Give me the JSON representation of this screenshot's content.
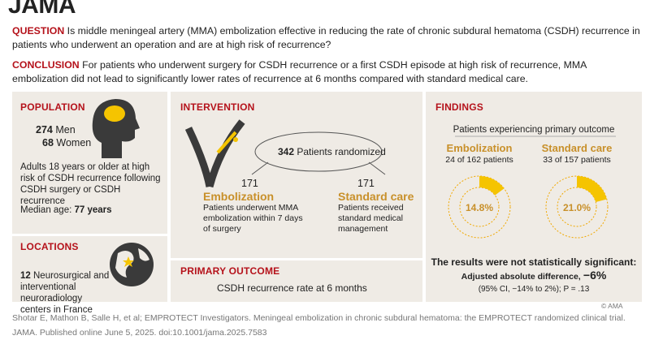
{
  "header": {
    "logo": "JAMA"
  },
  "question": {
    "label": "QUESTION",
    "text": "Is middle meningeal artery (MMA) embolization effective in reducing the rate of chronic subdural hematoma (CSDH) recurrence in patients who underwent an operation and are at high risk of recurrence?"
  },
  "conclusion": {
    "label": "CONCLUSION",
    "text": "For patients who underwent surgery for CSDH recurrence or a first CSDH episode at high risk of recurrence, MMA embolization did not lead to significantly lower rates of recurrence at 6 months compared with standard medical care."
  },
  "population": {
    "title": "POPULATION",
    "men_count": "274",
    "men_label": "Men",
    "women_count": "68",
    "women_label": "Women",
    "description": "Adults 18 years or older at high risk of CSDH recurrence following CSDH surgery or CSDH recurrence",
    "median_age_label": "Median age:",
    "median_age": "77 years"
  },
  "locations": {
    "title": "LOCATIONS",
    "count": "12",
    "text": "Neurosurgical and interventional neuroradiology centers in France"
  },
  "intervention": {
    "title": "INTERVENTION",
    "randomized_count": "342",
    "randomized_label": "Patients randomized",
    "arms": [
      {
        "n": "171",
        "name": "Embolization",
        "description": "Patients underwent MMA embolization within 7 days of surgery"
      },
      {
        "n": "171",
        "name": "Standard care",
        "description": "Patients received standard medical management"
      }
    ]
  },
  "primary_outcome": {
    "title": "PRIMARY OUTCOME",
    "text": "CSDH recurrence rate at 6 months"
  },
  "findings": {
    "title": "FINDINGS",
    "subtitle": "Patients experiencing primary outcome",
    "groups": [
      {
        "name": "Embolization",
        "detail": "24 of 162 patients",
        "value": 14.8,
        "value_label": "14.8%"
      },
      {
        "name": "Standard care",
        "detail": "33 of 157 patients",
        "value": 21.0,
        "value_label": "21.0%"
      }
    ],
    "result": "The results were not statistically significant:",
    "difference_label": "Adjusted absolute difference,",
    "difference": "−6%",
    "ci": "(95% CI, −14% to 2%); P = .13"
  },
  "copyright": "© AMA",
  "citation": [
    "Shotar E, Mathon B, Salle H, et al; EMPROTECT Investigators. Meningeal embolization in chronic subdural hematoma: the EMPROTECT randomized clinical trial.",
    "JAMA. Published online June 5, 2025. doi:10.1001/jama.2025.7583"
  ]
}
